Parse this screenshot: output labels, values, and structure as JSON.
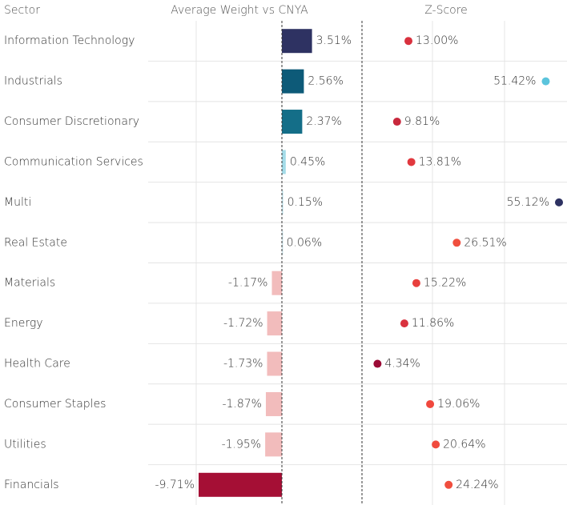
{
  "chart_data": {
    "type": "bar",
    "category_header": "Sector",
    "categories": [
      "Information Technology",
      "Industrials",
      "Consumer Discretionary",
      "Communication Services",
      "Multi",
      "Real Estate",
      "Materials",
      "Energy",
      "Health Care",
      "Consumer Staples",
      "Utilities",
      "Financials"
    ],
    "series": [
      {
        "name": "Average Weight vs CNYA",
        "values": [
          3.51,
          2.56,
          2.37,
          0.45,
          0.15,
          0.06,
          -1.17,
          -1.72,
          -1.73,
          -1.87,
          -1.95,
          -9.71
        ],
        "value_labels": [
          "3.51%",
          "2.56%",
          "2.37%",
          "0.45%",
          "0.15%",
          "0.06%",
          "-1.17%",
          "-1.72%",
          "-1.73%",
          "-1.87%",
          "-1.95%",
          "-9.71%"
        ],
        "colors": [
          "#2e3262",
          "#0d5a78",
          "#146e88",
          "#a3dbe8",
          "#c6e5ee",
          "#d3e7ee",
          "#f2bcbc",
          "#f2bcbc",
          "#f2bcbc",
          "#f2bcbc",
          "#f2bcbc",
          "#a50f35"
        ]
      },
      {
        "name": "Z-Score",
        "values": [
          13.0,
          51.42,
          9.81,
          13.81,
          55.12,
          26.51,
          15.22,
          11.86,
          4.34,
          19.06,
          20.64,
          24.24
        ],
        "value_labels": [
          "13.00%",
          "51.42%",
          "9.81%",
          "13.81%",
          "55.12%",
          "26.51%",
          "15.22%",
          "11.86%",
          "4.34%",
          "19.06%",
          "20.64%",
          "24.24%"
        ],
        "colors": [
          "#d9313e",
          "#5bc4dc",
          "#c8283c",
          "#e1383e",
          "#2e3262",
          "#f04f3e",
          "#e8403d",
          "#d9313e",
          "#9b0a35",
          "#f0483d",
          "#f04a3d",
          "#f04e3e"
        ]
      }
    ]
  }
}
